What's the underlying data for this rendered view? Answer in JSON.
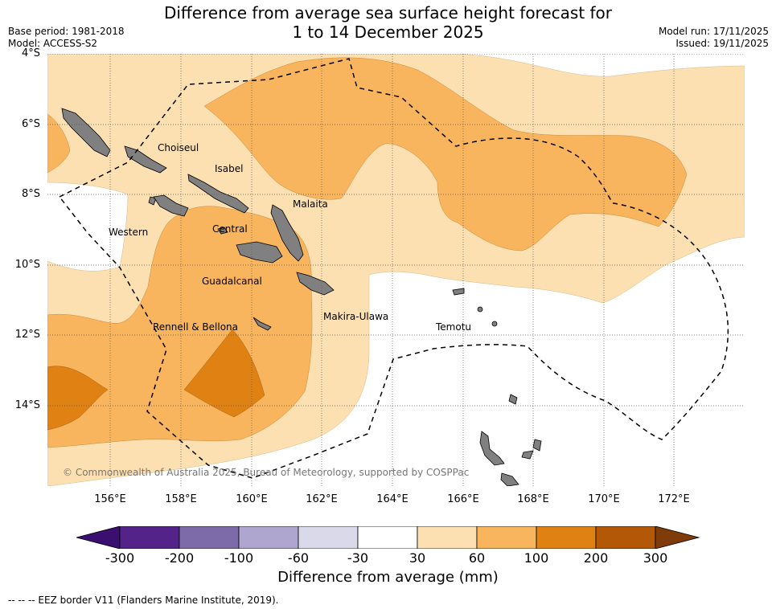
{
  "title_line1": "Difference from average sea surface height forecast for",
  "title_line2": "1 to 14 December 2025",
  "base_period": "Base period: 1981-2018",
  "model": "Model: ACCESS-S2",
  "model_run": "Model run: 17/11/2025",
  "issued": "Issued: 19/11/2025",
  "lat_labels": [
    "4°S",
    "6°S",
    "8°S",
    "10°S",
    "12°S",
    "14°S"
  ],
  "lon_labels": [
    "156°E",
    "158°E",
    "160°E",
    "162°E",
    "164°E",
    "166°E",
    "168°E",
    "170°E",
    "172°E"
  ],
  "regions": [
    "Choiseul",
    "Isabel",
    "Malaita",
    "Western",
    "Central",
    "Guadalcanal",
    "Makira-Ulawa",
    "Rennell & Bellona",
    "Temotu"
  ],
  "copyright": "© Commonwealth of Australia 2025, Bureau of Meteorology, supported by COSPPac",
  "colorbar": {
    "title": "Difference from average (mm)",
    "ticks": [
      "-300",
      "-200",
      "-100",
      "-60",
      "-30",
      "30",
      "60",
      "100",
      "200",
      "300"
    ],
    "colors": [
      "#3b0f6f",
      "#54238a",
      "#7d6aa9",
      "#aea6cf",
      "#d9d9ea",
      "#ffffff",
      "#fde0b2",
      "#f9b45e",
      "#e08114",
      "#b35806",
      "#7f3b08"
    ]
  },
  "footnote": "--  --  -- EEZ border V11 (Flanders Marine Institute, 2019)."
}
